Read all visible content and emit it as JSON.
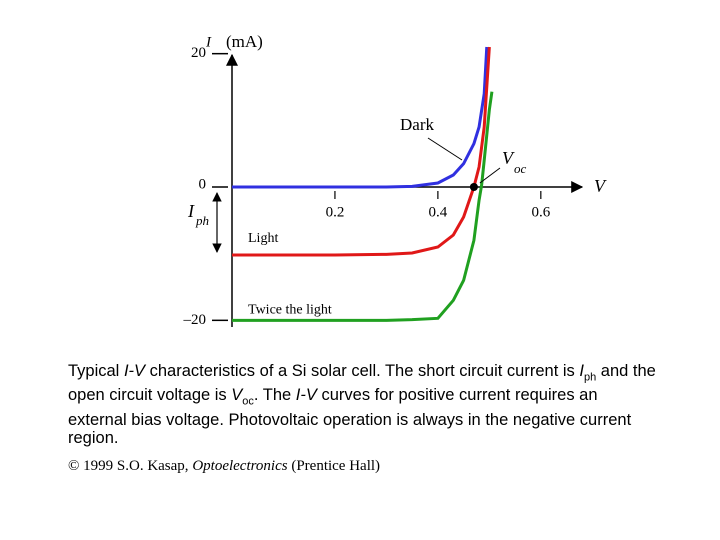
{
  "chart_data": {
    "type": "line",
    "y_label": [
      "I",
      "(mA)"
    ],
    "x_label": "V",
    "xlim": [
      0,
      0.68
    ],
    "ylim": [
      -21,
      21
    ],
    "xticks": [
      0.2,
      0.4,
      0.6
    ],
    "yticks": [
      {
        "value": -20,
        "label": "–20"
      },
      0,
      20
    ],
    "series": [
      {
        "name": "Dark",
        "color": "#3030e0",
        "x": [
          0,
          0.1,
          0.2,
          0.3,
          0.35,
          0.4,
          0.43,
          0.45,
          0.47,
          0.48,
          0.49,
          0.495
        ],
        "values": [
          0,
          0,
          0,
          0,
          0.1,
          0.6,
          1.8,
          3.5,
          6.5,
          9,
          14,
          21
        ]
      },
      {
        "name": "Light",
        "color": "#e01818",
        "x": [
          0,
          0.2,
          0.3,
          0.35,
          0.4,
          0.43,
          0.45,
          0.47,
          0.48,
          0.49,
          0.5
        ],
        "values": [
          -10.2,
          -10.2,
          -10.1,
          -9.9,
          -9,
          -7.2,
          -4.5,
          0,
          3,
          9,
          21
        ]
      },
      {
        "name": "Twice the light",
        "color": "#20a020",
        "x": [
          0,
          0.2,
          0.3,
          0.35,
          0.4,
          0.43,
          0.45,
          0.47,
          0.48,
          0.485,
          0.49,
          0.5,
          0.505
        ],
        "values": [
          -20,
          -20,
          -20,
          -19.9,
          -19.7,
          -17,
          -14,
          -8,
          -2,
          0.3,
          4,
          11.6,
          14.3
        ]
      }
    ],
    "voc": {
      "text": "V",
      "sub": "oc",
      "x": 0.47,
      "y": 0
    },
    "iph": {
      "text": "I",
      "sub": "ph"
    },
    "caption": [
      "Typical ",
      "I-V",
      " characteristics of a Si solar cell. The short circuit current is ",
      "I",
      "ph",
      " and the open circuit voltage is ",
      "V",
      "oc",
      ". The ",
      "I-V",
      " curves for positive current requires an external bias voltage. Photovoltaic operation is always in the negative current region."
    ],
    "credit": [
      "© 1999 S.O. Kasap, ",
      "Optoelectronics",
      " (Prentice Hall)"
    ]
  }
}
